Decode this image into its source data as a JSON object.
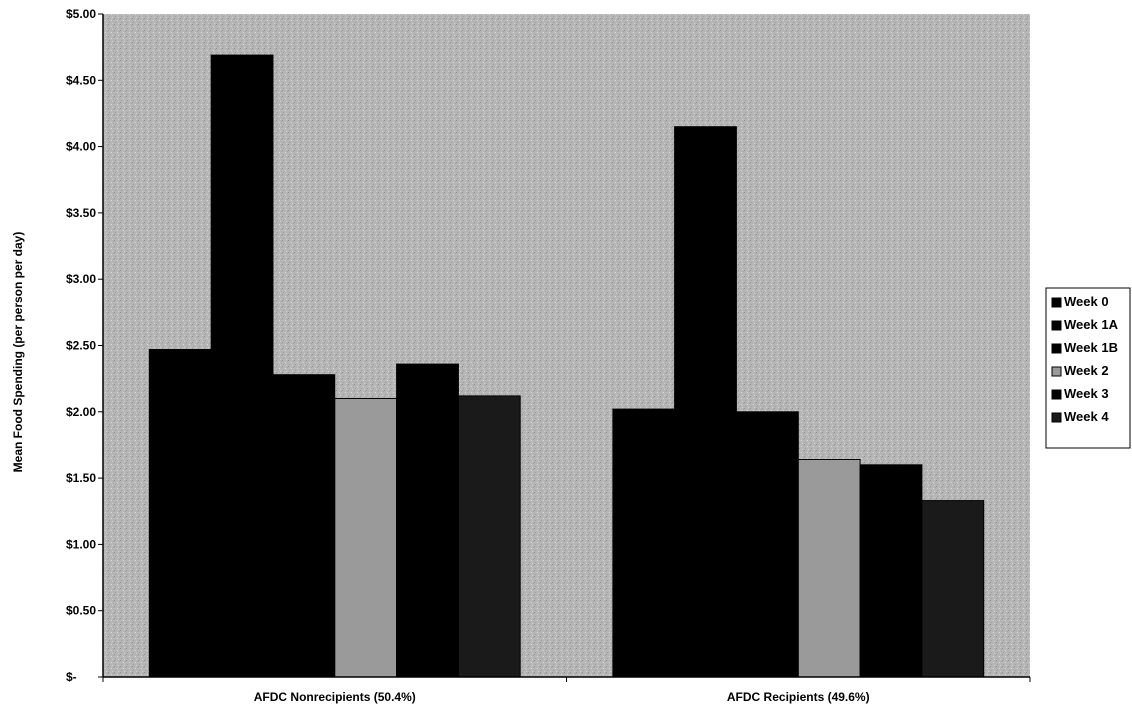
{
  "chart_data": {
    "type": "bar",
    "categories": [
      "AFDC Nonrecipients (50.4%)",
      "AFDC Recipients (49.6%)"
    ],
    "series": [
      {
        "name": "Week 0",
        "values": [
          2.47,
          2.02
        ],
        "color": "#000000"
      },
      {
        "name": "Week 1A",
        "values": [
          4.69,
          4.15
        ],
        "color": "#000000"
      },
      {
        "name": "Week 1B",
        "values": [
          2.28,
          2.0
        ],
        "color": "#000000"
      },
      {
        "name": "Week 2",
        "values": [
          2.1,
          1.64
        ],
        "color": "#9a9a9a"
      },
      {
        "name": "Week 3",
        "values": [
          2.36,
          1.6
        ],
        "color": "#000000"
      },
      {
        "name": "Week 4",
        "values": [
          2.12,
          1.33
        ],
        "color": "#1a1a1a"
      }
    ],
    "title": "",
    "xlabel": "",
    "ylabel": "Mean Food Spending (per person per day)",
    "ylim": [
      0,
      5
    ],
    "yticks": [
      0,
      0.5,
      1,
      1.5,
      2,
      2.5,
      3,
      3.5,
      4,
      4.5,
      5
    ],
    "ytick_labels": [
      "$-",
      "$0.50",
      "$1.00",
      "$1.50",
      "$2.00",
      "$2.50",
      "$3.00",
      "$3.50",
      "$4.00",
      "$4.50",
      "$5.00"
    ],
    "plot_background": "#b8b8b8",
    "legend_position": "right"
  }
}
